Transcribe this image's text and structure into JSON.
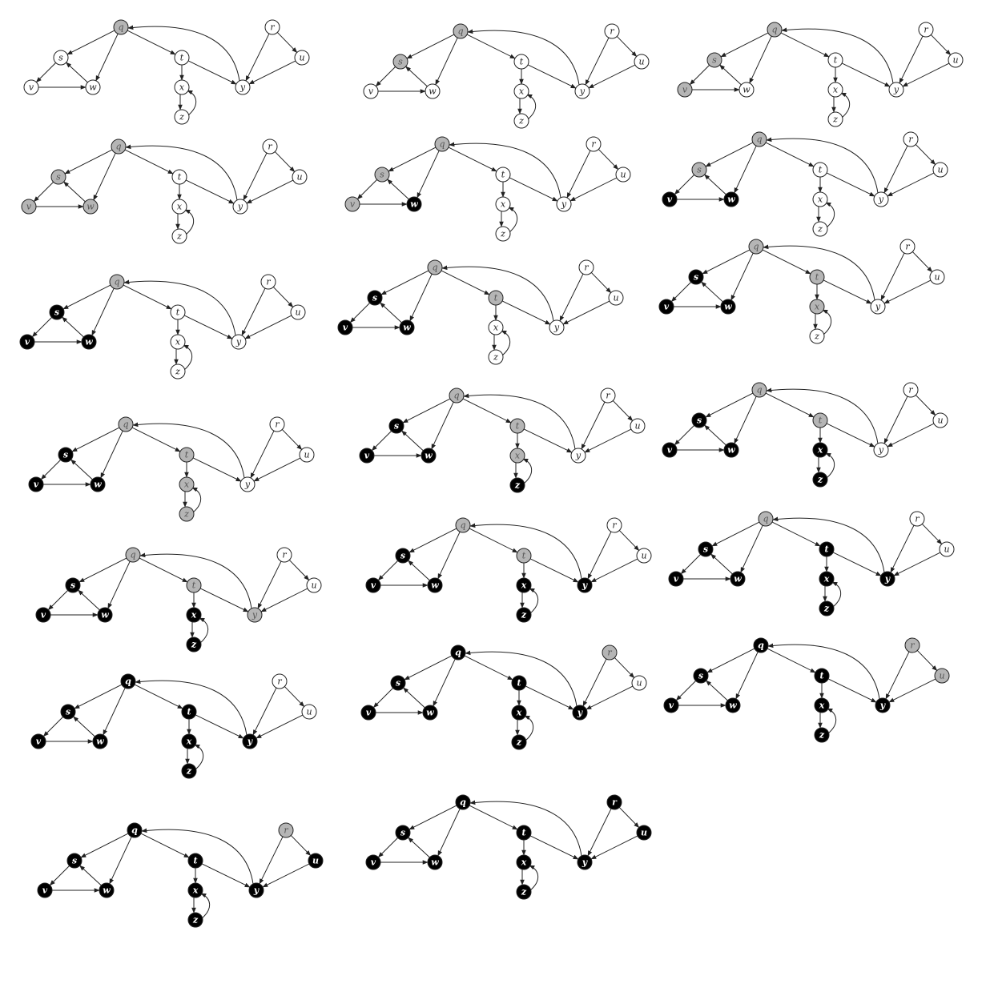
{
  "colors": {
    "white": "#ffffff",
    "gray": "#b5b5b5",
    "black": "#000000",
    "stroke": "#222222",
    "text_on_light": "#222222",
    "text_on_gray": "#555555",
    "text_on_black": "#ffffff"
  },
  "graph": {
    "nodes": [
      "q",
      "r",
      "s",
      "t",
      "u",
      "v",
      "w",
      "x",
      "y",
      "z"
    ],
    "edges": [
      [
        "q",
        "s"
      ],
      [
        "q",
        "w"
      ],
      [
        "q",
        "t"
      ],
      [
        "s",
        "v"
      ],
      [
        "v",
        "w"
      ],
      [
        "w",
        "s"
      ],
      [
        "t",
        "x"
      ],
      [
        "x",
        "z"
      ],
      [
        "z",
        "x"
      ],
      [
        "t",
        "y"
      ],
      [
        "y",
        "q"
      ],
      [
        "r",
        "u"
      ],
      [
        "r",
        "y"
      ],
      [
        "u",
        "y"
      ]
    ]
  },
  "panels": [
    {
      "colors": {
        "q": "gray",
        "r": "white",
        "s": "white",
        "t": "white",
        "u": "white",
        "v": "white",
        "w": "white",
        "x": "white",
        "y": "white",
        "z": "white"
      }
    },
    {
      "colors": {
        "q": "gray",
        "r": "white",
        "s": "gray",
        "t": "white",
        "u": "white",
        "v": "white",
        "w": "white",
        "x": "white",
        "y": "white",
        "z": "white"
      }
    },
    {
      "colors": {
        "q": "gray",
        "r": "white",
        "s": "gray",
        "t": "white",
        "u": "white",
        "v": "gray",
        "w": "white",
        "x": "white",
        "y": "white",
        "z": "white"
      }
    },
    {
      "colors": {
        "q": "gray",
        "r": "white",
        "s": "gray",
        "t": "white",
        "u": "white",
        "v": "gray",
        "w": "gray",
        "x": "white",
        "y": "white",
        "z": "white"
      }
    },
    {
      "colors": {
        "q": "gray",
        "r": "white",
        "s": "gray",
        "t": "white",
        "u": "white",
        "v": "gray",
        "w": "black",
        "x": "white",
        "y": "white",
        "z": "white"
      }
    },
    {
      "colors": {
        "q": "gray",
        "r": "white",
        "s": "gray",
        "t": "white",
        "u": "white",
        "v": "black",
        "w": "black",
        "x": "white",
        "y": "white",
        "z": "white"
      }
    },
    {
      "colors": {
        "q": "gray",
        "r": "white",
        "s": "black",
        "t": "white",
        "u": "white",
        "v": "black",
        "w": "black",
        "x": "white",
        "y": "white",
        "z": "white"
      }
    },
    {
      "colors": {
        "q": "gray",
        "r": "white",
        "s": "black",
        "t": "gray",
        "u": "white",
        "v": "black",
        "w": "black",
        "x": "white",
        "y": "white",
        "z": "white"
      }
    },
    {
      "colors": {
        "q": "gray",
        "r": "white",
        "s": "black",
        "t": "gray",
        "u": "white",
        "v": "black",
        "w": "black",
        "x": "gray",
        "y": "white",
        "z": "white"
      }
    },
    {
      "colors": {
        "q": "gray",
        "r": "white",
        "s": "black",
        "t": "gray",
        "u": "white",
        "v": "black",
        "w": "black",
        "x": "gray",
        "y": "white",
        "z": "gray"
      }
    },
    {
      "colors": {
        "q": "gray",
        "r": "white",
        "s": "black",
        "t": "gray",
        "u": "white",
        "v": "black",
        "w": "black",
        "x": "gray",
        "y": "white",
        "z": "black"
      }
    },
    {
      "colors": {
        "q": "gray",
        "r": "white",
        "s": "black",
        "t": "gray",
        "u": "white",
        "v": "black",
        "w": "black",
        "x": "black",
        "y": "white",
        "z": "black"
      }
    },
    {
      "colors": {
        "q": "gray",
        "r": "white",
        "s": "black",
        "t": "gray",
        "u": "white",
        "v": "black",
        "w": "black",
        "x": "black",
        "y": "gray",
        "z": "black"
      }
    },
    {
      "colors": {
        "q": "gray",
        "r": "white",
        "s": "black",
        "t": "gray",
        "u": "white",
        "v": "black",
        "w": "black",
        "x": "black",
        "y": "black",
        "z": "black"
      }
    },
    {
      "colors": {
        "q": "gray",
        "r": "white",
        "s": "black",
        "t": "black",
        "u": "white",
        "v": "black",
        "w": "black",
        "x": "black",
        "y": "black",
        "z": "black"
      }
    },
    {
      "colors": {
        "q": "black",
        "r": "white",
        "s": "black",
        "t": "black",
        "u": "white",
        "v": "black",
        "w": "black",
        "x": "black",
        "y": "black",
        "z": "black"
      }
    },
    {
      "colors": {
        "q": "black",
        "r": "gray",
        "s": "black",
        "t": "black",
        "u": "white",
        "v": "black",
        "w": "black",
        "x": "black",
        "y": "black",
        "z": "black"
      }
    },
    {
      "colors": {
        "q": "black",
        "r": "gray",
        "s": "black",
        "t": "black",
        "u": "gray",
        "v": "black",
        "w": "black",
        "x": "black",
        "y": "black",
        "z": "black"
      }
    },
    {
      "colors": {
        "q": "black",
        "r": "gray",
        "s": "black",
        "t": "black",
        "u": "black",
        "v": "black",
        "w": "black",
        "x": "black",
        "y": "black",
        "z": "black"
      }
    },
    {
      "colors": {
        "q": "black",
        "r": "black",
        "s": "black",
        "t": "black",
        "u": "black",
        "v": "black",
        "w": "black",
        "x": "black",
        "y": "black",
        "z": "black"
      }
    }
  ]
}
